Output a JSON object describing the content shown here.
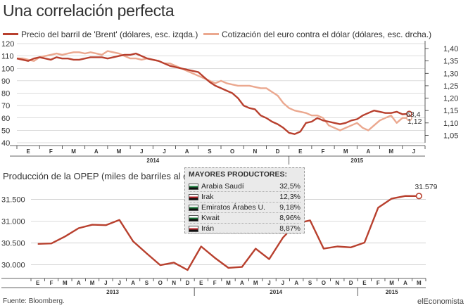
{
  "header": {
    "title": "Una correlación perfecta",
    "legend_brent": "Precio del barril de 'Brent' (dólares, esc. izqda.)",
    "legend_euro": "Cotización del euro contra el dólar (dólares, esc. drcha.)"
  },
  "colors": {
    "brent": "#b8402e",
    "euro": "#eba88f",
    "opep": "#b8402e",
    "axis": "#333333",
    "grid": "#b9b9b9"
  },
  "section2": {
    "title": "Producción de la OPEP (miles de barriles al día)"
  },
  "producers": {
    "title": "MAYORES PRODUCTORES:",
    "items": [
      {
        "name": "Arabia Saudí",
        "value": "32,5%",
        "flag": "flag-saudi-icon",
        "flag_color": "#1a7a3a"
      },
      {
        "name": "Irak",
        "value": "12,3%",
        "flag": "flag-iraq-icon",
        "flag_color": "#c0262d"
      },
      {
        "name": "Emiratos Árabes U.",
        "value": "9,18%",
        "flag": "flag-uae-icon",
        "flag_color": "#1a7a3a"
      },
      {
        "name": "Kwait",
        "value": "8,96%",
        "flag": "flag-kuwait-icon",
        "flag_color": "#1a7a3a"
      },
      {
        "name": "Irán",
        "value": "8,87%",
        "flag": "flag-iran-icon",
        "flag_color": "#c0262d"
      }
    ]
  },
  "footer": {
    "source": "Fuente: Bloomberg.",
    "brand": "elEconomista"
  },
  "chart_data": [
    {
      "type": "line",
      "title": "Una correlación perfecta",
      "x_ticks": [
        "E",
        "F",
        "M",
        "A",
        "M",
        "J",
        "J",
        "A",
        "S",
        "O",
        "N",
        "D",
        "E",
        "F",
        "M",
        "A",
        "M",
        "J"
      ],
      "year_labels": [
        "2014",
        "2015"
      ],
      "y_left": {
        "ticks": [
          "120",
          "110",
          "100",
          "90",
          "80",
          "70",
          "60",
          "50",
          "40"
        ],
        "range": [
          40,
          120
        ]
      },
      "y_right": {
        "ticks": [
          "1,40",
          "1,35",
          "1,30",
          "1,25",
          "1,20",
          "1,15",
          "1,10",
          "1,05"
        ],
        "range": [
          1.02,
          1.42
        ]
      },
      "grid": true,
      "series": [
        {
          "name": "Precio del barril de 'Brent' (dólares, esc. izqda.)",
          "axis": "left",
          "end_label": "63,4",
          "x": [
            0,
            0.25,
            0.5,
            0.75,
            1,
            1.25,
            1.5,
            1.75,
            2,
            2.25,
            2.5,
            2.75,
            3,
            3.25,
            3.5,
            3.75,
            4,
            4.25,
            4.5,
            4.75,
            5,
            5.25,
            5.5,
            5.75,
            6,
            6.25,
            6.5,
            6.75,
            7,
            7.25,
            7.5,
            7.75,
            8,
            8.25,
            8.5,
            8.75,
            9,
            9.25,
            9.5,
            9.75,
            10,
            10.25,
            10.5,
            10.75,
            11,
            11.25,
            11.5,
            11.75,
            12,
            12.25,
            12.5,
            12.75,
            13,
            13.25,
            13.5,
            13.75,
            14,
            14.25,
            14.5,
            14.75,
            15,
            15.25,
            15.5,
            15.75,
            16,
            16.25,
            16.5,
            16.75,
            17,
            17.3
          ],
          "values": [
            108,
            107,
            106,
            108,
            109,
            108,
            107,
            109,
            108,
            108,
            107,
            107,
            108,
            109,
            109,
            109,
            108,
            109,
            110,
            111,
            111,
            112,
            110,
            108,
            107,
            106,
            104,
            102,
            101,
            100,
            99,
            98,
            97,
            93,
            89,
            86,
            84,
            82,
            80,
            76,
            70,
            68,
            67,
            62,
            60,
            57,
            55,
            52,
            48,
            47,
            49,
            56,
            57,
            60,
            58,
            57,
            56,
            55,
            56,
            58,
            59,
            62,
            64,
            66,
            65,
            64,
            64,
            65,
            63,
            63.4
          ]
        },
        {
          "name": "Cotización del euro contra el dólar (dólares, esc. drcha.)",
          "axis": "right",
          "end_label": "1,12",
          "x": [
            0,
            0.25,
            0.5,
            0.75,
            1,
            1.25,
            1.5,
            1.75,
            2,
            2.25,
            2.5,
            2.75,
            3,
            3.25,
            3.5,
            3.75,
            4,
            4.25,
            4.5,
            4.75,
            5,
            5.25,
            5.5,
            5.75,
            6,
            6.25,
            6.5,
            6.75,
            7,
            7.25,
            7.5,
            7.75,
            8,
            8.25,
            8.5,
            8.75,
            9,
            9.25,
            9.5,
            9.75,
            10,
            10.25,
            10.5,
            10.75,
            11,
            11.25,
            11.5,
            11.75,
            12,
            12.25,
            12.5,
            12.75,
            13,
            13.25,
            13.5,
            13.75,
            14,
            14.25,
            14.5,
            14.75,
            15,
            15.25,
            15.5,
            15.75,
            16,
            16.25,
            16.5,
            16.75,
            17,
            17.3
          ],
          "values": [
            1.36,
            1.36,
            1.355,
            1.35,
            1.365,
            1.37,
            1.375,
            1.38,
            1.375,
            1.38,
            1.385,
            1.385,
            1.38,
            1.385,
            1.38,
            1.375,
            1.39,
            1.385,
            1.38,
            1.37,
            1.36,
            1.36,
            1.355,
            1.36,
            1.355,
            1.35,
            1.34,
            1.34,
            1.33,
            1.32,
            1.31,
            1.3,
            1.29,
            1.28,
            1.27,
            1.26,
            1.27,
            1.26,
            1.255,
            1.25,
            1.25,
            1.25,
            1.245,
            1.24,
            1.24,
            1.225,
            1.21,
            1.18,
            1.16,
            1.15,
            1.145,
            1.14,
            1.13,
            1.13,
            1.12,
            1.09,
            1.08,
            1.07,
            1.08,
            1.09,
            1.1,
            1.08,
            1.07,
            1.09,
            1.11,
            1.12,
            1.13,
            1.1,
            1.12,
            1.12
          ]
        }
      ]
    },
    {
      "type": "line",
      "title": "Producción de la OPEP (miles de barriles al día)",
      "x_ticks": [
        "E",
        "F",
        "M",
        "A",
        "M",
        "J",
        "J",
        "A",
        "S",
        "O",
        "N",
        "D",
        "E",
        "F",
        "M",
        "A",
        "M",
        "J",
        "J",
        "A",
        "S",
        "O",
        "N",
        "D",
        "E",
        "F",
        "M",
        "A",
        "M"
      ],
      "year_labels": [
        "2013",
        "2014",
        "2015"
      ],
      "y": {
        "ticks": [
          "31.500",
          "31.000",
          "30.500",
          "30.000"
        ],
        "range": [
          29.75,
          31.85
        ],
        "scale": "thousands"
      },
      "grid": true,
      "series": [
        {
          "name": "Producción de la OPEP",
          "end_label": "31.579",
          "values": [
            30480,
            30490,
            30650,
            30840,
            30920,
            30910,
            31030,
            30540,
            30260,
            29990,
            30050,
            29880,
            30420,
            30160,
            29930,
            29950,
            30370,
            30130,
            30620,
            30950,
            31020,
            30370,
            30420,
            30400,
            30510,
            31310,
            31520,
            31580,
            31579
          ]
        }
      ]
    }
  ]
}
